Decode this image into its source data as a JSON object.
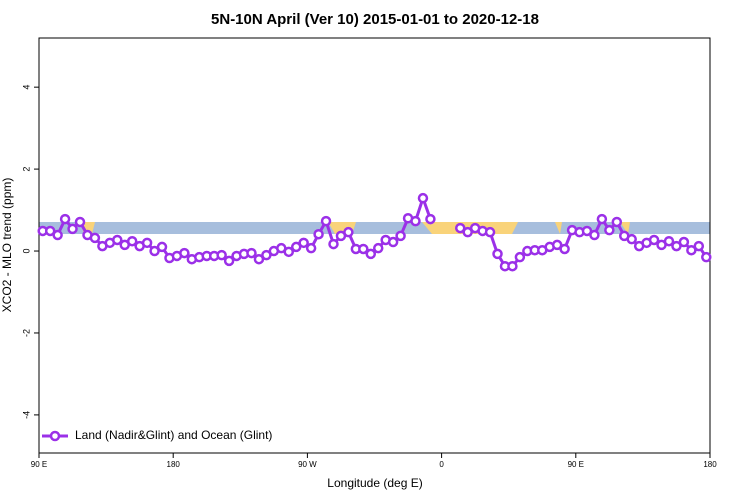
{
  "chart_data": {
    "type": "line",
    "title": "5N-10N April (Ver 10)   2015-01-01 to 2020-12-18",
    "x_label": "Longitude (deg E)",
    "y_label": "XCO2 - MLO trend (ppm)",
    "x": [
      92.5,
      97.5,
      102.5,
      107.5,
      112.5,
      117.5,
      122.5,
      127.5,
      132.5,
      137.5,
      142.5,
      147.5,
      152.5,
      157.5,
      162.5,
      167.5,
      172.5,
      177.5,
      182.5,
      187.5,
      192.5,
      197.5,
      202.5,
      207.5,
      212.5,
      217.5,
      222.5,
      227.5,
      232.5,
      237.5,
      242.5,
      247.5,
      252.5,
      257.5,
      262.5,
      267.5,
      272.5,
      277.5,
      282.5,
      287.5,
      292.5,
      297.5,
      302.5,
      307.5,
      312.5,
      317.5,
      322.5,
      327.5,
      332.5,
      337.5,
      342.5,
      347.5,
      352.5,
      357.5,
      362.5,
      367.5,
      372.5,
      377.5,
      382.5,
      387.5,
      392.5,
      397.5,
      402.5,
      407.5,
      412.5,
      417.5,
      422.5,
      427.5,
      432.5,
      437.5,
      442.5,
      447.5,
      452.5,
      457.5,
      462.5,
      467.5,
      472.5,
      477.5,
      482.5,
      487.5,
      492.5,
      497.5,
      502.5,
      507.5,
      512.5,
      517.5,
      522.5,
      527.5,
      532.5,
      537.5
    ],
    "series": [
      {
        "name": "Land (Nadir&Glint) and Ocean (Glint)",
        "color": "#9b30e8",
        "values": [
          0.49,
          0.49,
          0.39,
          0.78,
          0.54,
          0.71,
          0.39,
          0.32,
          0.12,
          0.2,
          0.27,
          0.15,
          0.24,
          0.12,
          0.2,
          0,
          0.1,
          -0.17,
          -0.12,
          -0.05,
          -0.2,
          -0.15,
          -0.12,
          -0.12,
          -0.1,
          -0.24,
          -0.12,
          -0.07,
          -0.05,
          -0.2,
          -0.1,
          0,
          0.07,
          -0.02,
          0.1,
          0.2,
          0.07,
          0.41,
          0.73,
          0.17,
          0.37,
          0.46,
          0.05,
          0.05,
          -0.07,
          0.07,
          0.27,
          0.22,
          0.37,
          0.8,
          0.73,
          1.29,
          0.78,
          null,
          null,
          null,
          0.56,
          0.46,
          0.56,
          0.49,
          0.46,
          -0.07,
          -0.37,
          -0.37,
          -0.15,
          0,
          0.02,
          0.02,
          0.1,
          0.15,
          0.05,
          0.51,
          0.46,
          0.49,
          0.39,
          0.78,
          0.51,
          0.71,
          0.37,
          0.29,
          0.12,
          0.2,
          0.27,
          0.15,
          0.24,
          0.12,
          0.22,
          0.02,
          0.12,
          -0.15
        ]
      }
    ],
    "xlim": [
      90,
      540
    ],
    "xticks": [
      {
        "value": 90,
        "label": "90 E"
      },
      180,
      {
        "value": 270,
        "label": "90 W"
      },
      {
        "value": 360,
        "label": "0"
      },
      {
        "value": 450,
        "label": "90 E"
      },
      {
        "value": 540,
        "label": "180"
      }
    ],
    "ylim": [
      -4.93,
      5.2
    ],
    "yticks": [
      -4,
      -2,
      0,
      2,
      4
    ],
    "legend": "bottom-left"
  }
}
